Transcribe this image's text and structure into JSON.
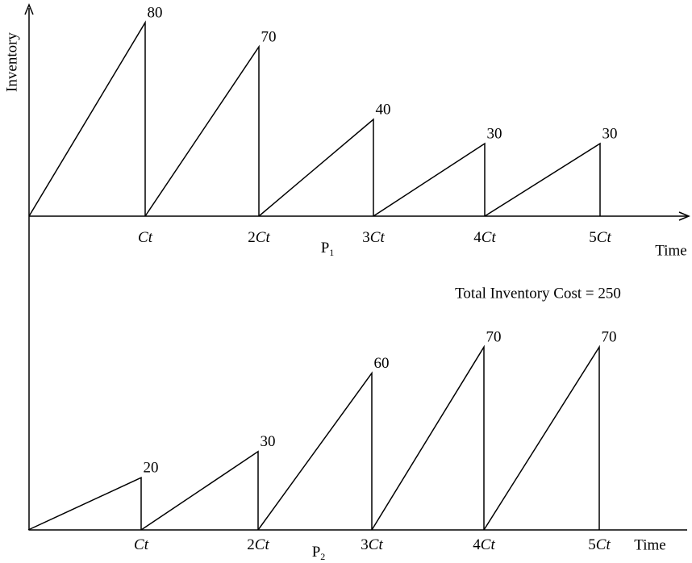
{
  "y_axis_label": "Inventory",
  "total_cost": "Total Inventory Cost = 250",
  "panels": [
    {
      "axis_label": "Time",
      "name": "P",
      "subscript": "1",
      "ticks": [
        {
          "var": "Ct"
        },
        {
          "coef": "2",
          "var": "Ct"
        },
        {
          "coef": "3",
          "var": "Ct"
        },
        {
          "coef": "4",
          "var": "Ct"
        },
        {
          "coef": "5",
          "var": "Ct"
        }
      ],
      "peaks": [
        80,
        70,
        40,
        30,
        30
      ]
    },
    {
      "axis_label": "Time",
      "name": "P",
      "subscript": "2",
      "ticks": [
        {
          "var": "Ct"
        },
        {
          "coef": "2",
          "var": "Ct"
        },
        {
          "coef": "3",
          "var": "Ct"
        },
        {
          "coef": "4",
          "var": "Ct"
        },
        {
          "coef": "5",
          "var": "Ct"
        }
      ],
      "peaks": [
        20,
        30,
        60,
        70,
        70
      ]
    }
  ]
}
